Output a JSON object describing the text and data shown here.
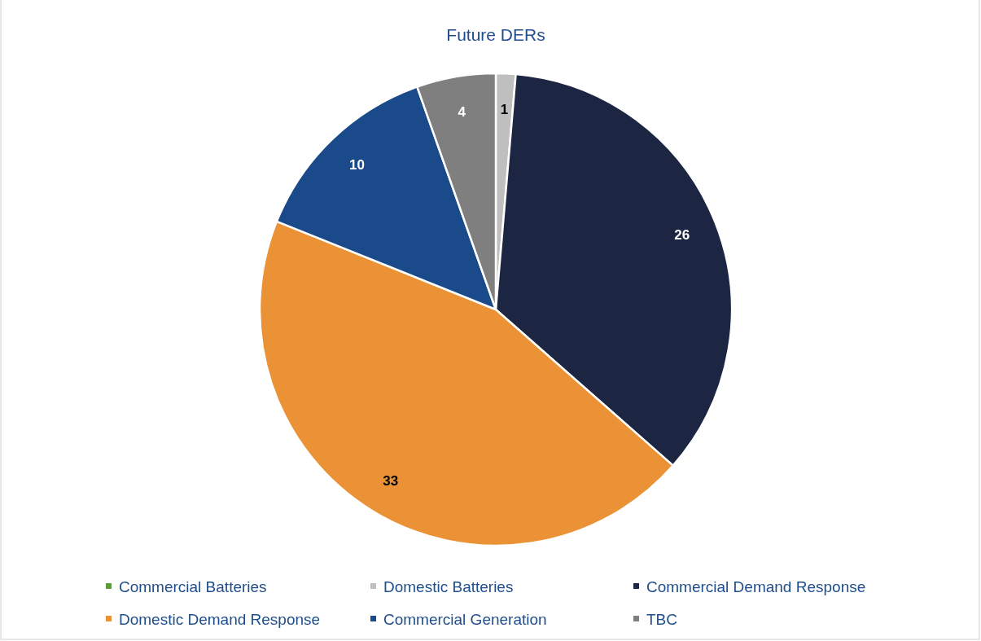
{
  "chart_data": {
    "type": "pie",
    "title": "Future DERs",
    "categories": [
      "Commercial Batteries",
      "Domestic Batteries",
      "Commercial Demand Response",
      "Domestic Demand Response",
      "Commercial Generation",
      "TBC"
    ],
    "values": [
      0,
      1,
      26,
      33,
      10,
      4
    ],
    "colors": [
      "#5b9b3c",
      "#bfbfbf",
      "#1c2541",
      "#ea9235",
      "#1a4a8a",
      "#7f7f7f"
    ],
    "value_labels": [
      null,
      "1",
      "26",
      "33",
      "10",
      "4"
    ],
    "legend": "bottom"
  }
}
